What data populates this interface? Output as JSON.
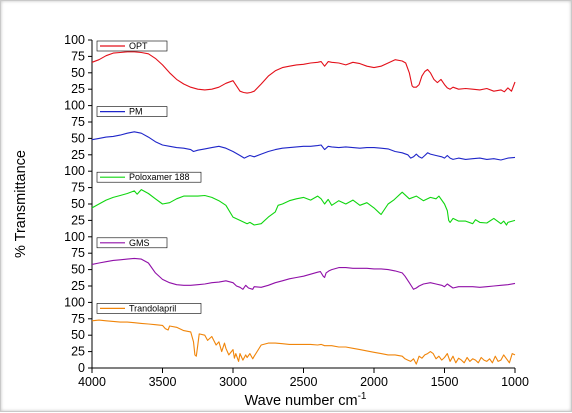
{
  "chart_data": {
    "type": "line",
    "title": "",
    "xlabel": "Wave number cm",
    "xlabel_sup": "-1",
    "ylabel": "% Transmittance",
    "xlim": [
      4000,
      1000
    ],
    "ylim_per_panel": [
      0,
      100
    ],
    "x_ticks": [
      "4000",
      "3500",
      "3000",
      "2500",
      "2000",
      "1500",
      "1000"
    ],
    "y_ticks": [
      "0",
      "25",
      "50",
      "75",
      "100"
    ],
    "grid": false,
    "legend_placement": "top-left of each panel",
    "panels": [
      {
        "name": "OPT",
        "color": "#e3101a",
        "x": [
          4000,
          3950,
          3900,
          3850,
          3800,
          3750,
          3700,
          3650,
          3600,
          3550,
          3500,
          3450,
          3400,
          3350,
          3300,
          3250,
          3200,
          3150,
          3100,
          3050,
          3000,
          2975,
          2950,
          2925,
          2900,
          2875,
          2850,
          2800,
          2750,
          2700,
          2650,
          2600,
          2550,
          2500,
          2450,
          2400,
          2375,
          2350,
          2325,
          2300,
          2250,
          2200,
          2150,
          2100,
          2050,
          2000,
          1950,
          1900,
          1850,
          1800,
          1775,
          1750,
          1740,
          1730,
          1720,
          1700,
          1680,
          1660,
          1640,
          1620,
          1600,
          1575,
          1550,
          1525,
          1500,
          1480,
          1460,
          1440,
          1400,
          1350,
          1300,
          1250,
          1200,
          1150,
          1100,
          1075,
          1050,
          1025,
          1000
        ],
        "y": [
          66,
          70,
          76,
          80,
          81,
          82,
          82,
          81,
          79,
          72,
          62,
          50,
          40,
          33,
          28,
          25,
          24,
          25,
          28,
          34,
          38,
          30,
          22,
          20,
          19,
          20,
          22,
          33,
          45,
          53,
          58,
          60,
          62,
          63,
          65,
          66,
          67,
          60,
          67,
          66,
          65,
          62,
          66,
          64,
          60,
          58,
          60,
          65,
          70,
          68,
          65,
          50,
          40,
          30,
          28,
          28,
          32,
          45,
          52,
          55,
          50,
          40,
          35,
          40,
          32,
          27,
          25,
          28,
          25,
          26,
          25,
          24,
          26,
          22,
          24,
          21,
          27,
          22,
          36
        ]
      },
      {
        "name": "PM",
        "color": "#1f26c9",
        "x": [
          4000,
          3950,
          3900,
          3850,
          3800,
          3750,
          3700,
          3650,
          3600,
          3550,
          3500,
          3450,
          3400,
          3350,
          3300,
          3280,
          3250,
          3200,
          3150,
          3100,
          3050,
          3000,
          2950,
          2920,
          2900,
          2880,
          2850,
          2800,
          2750,
          2700,
          2650,
          2600,
          2550,
          2500,
          2450,
          2400,
          2375,
          2350,
          2325,
          2300,
          2250,
          2200,
          2150,
          2100,
          2050,
          2000,
          1950,
          1900,
          1850,
          1800,
          1760,
          1740,
          1720,
          1700,
          1680,
          1660,
          1640,
          1620,
          1600,
          1560,
          1520,
          1500,
          1480,
          1460,
          1440,
          1400,
          1350,
          1300,
          1250,
          1200,
          1150,
          1100,
          1050,
          1000
        ],
        "y": [
          48,
          50,
          52,
          53,
          55,
          58,
          60,
          58,
          52,
          45,
          40,
          38,
          36,
          35,
          33,
          30,
          32,
          34,
          36,
          38,
          35,
          30,
          24,
          20,
          22,
          24,
          22,
          26,
          30,
          33,
          35,
          36,
          37,
          38,
          38,
          39,
          40,
          33,
          38,
          37,
          36,
          37,
          36,
          35,
          36,
          36,
          35,
          34,
          30,
          28,
          25,
          20,
          22,
          26,
          22,
          20,
          24,
          28,
          26,
          24,
          22,
          20,
          24,
          20,
          18,
          20,
          18,
          19,
          20,
          18,
          19,
          17,
          20,
          21
        ]
      },
      {
        "name": "Poloxamer 188",
        "color": "#10d610",
        "x": [
          4000,
          3950,
          3900,
          3850,
          3800,
          3750,
          3700,
          3680,
          3650,
          3600,
          3550,
          3500,
          3450,
          3400,
          3350,
          3300,
          3250,
          3200,
          3150,
          3100,
          3050,
          3000,
          2950,
          2900,
          2880,
          2850,
          2800,
          2750,
          2700,
          2680,
          2650,
          2600,
          2550,
          2500,
          2450,
          2400,
          2375,
          2350,
          2325,
          2300,
          2250,
          2200,
          2150,
          2100,
          2050,
          2000,
          1960,
          1950,
          1900,
          1860,
          1840,
          1800,
          1750,
          1700,
          1650,
          1600,
          1560,
          1540,
          1500,
          1480,
          1470,
          1460,
          1440,
          1400,
          1350,
          1300,
          1280,
          1250,
          1200,
          1150,
          1100,
          1080,
          1060,
          1050,
          1000
        ],
        "y": [
          44,
          50,
          56,
          60,
          63,
          66,
          70,
          65,
          72,
          66,
          58,
          50,
          52,
          58,
          62,
          62,
          62,
          63,
          60,
          55,
          48,
          30,
          25,
          20,
          22,
          18,
          20,
          30,
          38,
          48,
          50,
          55,
          58,
          60,
          56,
          62,
          58,
          50,
          57,
          48,
          55,
          50,
          56,
          48,
          52,
          44,
          36,
          34,
          50,
          56,
          60,
          68,
          58,
          62,
          55,
          60,
          58,
          62,
          50,
          40,
          25,
          22,
          28,
          24,
          24,
          20,
          26,
          22,
          21,
          28,
          20,
          24,
          18,
          22,
          25
        ]
      },
      {
        "name": "GMS",
        "color": "#9010a8",
        "x": [
          4000,
          3950,
          3900,
          3850,
          3800,
          3750,
          3700,
          3650,
          3600,
          3550,
          3500,
          3450,
          3400,
          3350,
          3300,
          3250,
          3200,
          3150,
          3100,
          3050,
          3000,
          2975,
          2950,
          2930,
          2910,
          2890,
          2860,
          2850,
          2800,
          2750,
          2700,
          2650,
          2600,
          2550,
          2500,
          2450,
          2400,
          2380,
          2360,
          2350,
          2340,
          2320,
          2300,
          2250,
          2200,
          2150,
          2100,
          2050,
          2000,
          1950,
          1900,
          1850,
          1800,
          1780,
          1750,
          1735,
          1720,
          1700,
          1680,
          1650,
          1600,
          1560,
          1520,
          1500,
          1480,
          1460,
          1440,
          1400,
          1350,
          1300,
          1250,
          1200,
          1150,
          1100,
          1050,
          1000
        ],
        "y": [
          58,
          60,
          62,
          64,
          65,
          66,
          67,
          66,
          60,
          45,
          35,
          30,
          27,
          26,
          26,
          27,
          28,
          30,
          31,
          33,
          30,
          25,
          23,
          20,
          26,
          22,
          20,
          24,
          23,
          26,
          30,
          33,
          36,
          38,
          40,
          43,
          46,
          47,
          40,
          38,
          45,
          48,
          50,
          53,
          53,
          52,
          52,
          52,
          51,
          51,
          50,
          48,
          45,
          40,
          30,
          25,
          20,
          22,
          25,
          28,
          30,
          28,
          26,
          24,
          28,
          25,
          22,
          24,
          24,
          24,
          23,
          24,
          25,
          26,
          27,
          29
        ]
      },
      {
        "name": "Trandolapril",
        "color": "#f0850a",
        "x": [
          4000,
          3950,
          3900,
          3850,
          3800,
          3750,
          3700,
          3650,
          3600,
          3550,
          3500,
          3480,
          3460,
          3450,
          3400,
          3350,
          3300,
          3280,
          3270,
          3260,
          3250,
          3240,
          3200,
          3180,
          3150,
          3120,
          3100,
          3080,
          3060,
          3050,
          3030,
          3000,
          2990,
          2980,
          2960,
          2950,
          2930,
          2910,
          2900,
          2880,
          2860,
          2850,
          2800,
          2750,
          2700,
          2650,
          2600,
          2550,
          2500,
          2450,
          2400,
          2375,
          2350,
          2300,
          2250,
          2200,
          2150,
          2100,
          2050,
          2000,
          1950,
          1900,
          1850,
          1800,
          1780,
          1760,
          1740,
          1720,
          1700,
          1680,
          1660,
          1640,
          1620,
          1600,
          1580,
          1560,
          1540,
          1520,
          1500,
          1480,
          1460,
          1440,
          1420,
          1400,
          1380,
          1360,
          1340,
          1320,
          1300,
          1280,
          1260,
          1240,
          1220,
          1200,
          1180,
          1160,
          1140,
          1120,
          1100,
          1080,
          1060,
          1040,
          1020,
          1000
        ],
        "y": [
          72,
          73,
          72,
          71,
          70,
          70,
          69,
          68,
          67,
          66,
          65,
          60,
          58,
          64,
          62,
          57,
          55,
          40,
          20,
          18,
          35,
          52,
          50,
          42,
          48,
          35,
          40,
          25,
          38,
          30,
          20,
          28,
          15,
          22,
          10,
          22,
          12,
          20,
          16,
          22,
          14,
          18,
          35,
          38,
          38,
          37,
          36,
          36,
          36,
          36,
          35,
          36,
          34,
          34,
          32,
          32,
          30,
          28,
          26,
          24,
          22,
          20,
          20,
          18,
          14,
          12,
          10,
          14,
          6,
          18,
          15,
          20,
          22,
          25,
          22,
          14,
          18,
          12,
          16,
          22,
          10,
          18,
          8,
          15,
          12,
          8,
          16,
          10,
          14,
          12,
          8,
          16,
          12,
          10,
          14,
          8,
          18,
          10,
          12,
          20,
          14,
          8,
          22,
          20
        ]
      }
    ]
  }
}
